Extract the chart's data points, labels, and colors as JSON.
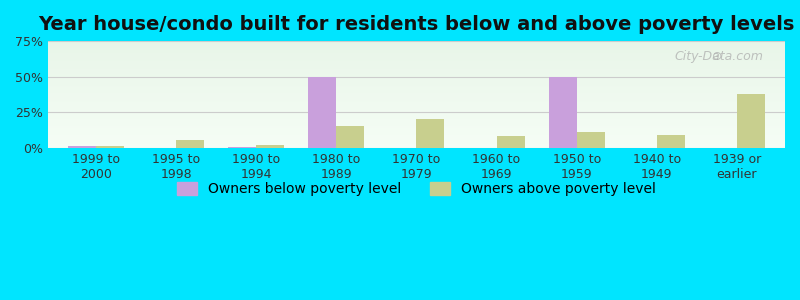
{
  "title": "Year house/condo built for residents below and above poverty levels",
  "categories": [
    "1999 to\n2000",
    "1995 to\n1998",
    "1990 to\n1994",
    "1980 to\n1989",
    "1970 to\n1979",
    "1960 to\n1969",
    "1950 to\n1959",
    "1940 to\n1949",
    "1939 or\nearlier"
  ],
  "below_poverty": [
    1.0,
    0.0,
    0.5,
    50.0,
    0.0,
    0.0,
    50.0,
    0.0,
    0.0
  ],
  "above_poverty": [
    1.5,
    5.5,
    2.0,
    15.0,
    20.0,
    8.0,
    11.0,
    9.0,
    38.0
  ],
  "below_color": "#c9a0dc",
  "above_color": "#c8cf8e",
  "background_color": "#00e5ff",
  "plot_bg_top": "#e8f5e9",
  "plot_bg_bottom": "#f0f9f0",
  "ylim": [
    0,
    75
  ],
  "yticks": [
    0,
    25,
    50,
    75
  ],
  "ytick_labels": [
    "0%",
    "25%",
    "50%",
    "75%"
  ],
  "title_fontsize": 14,
  "tick_fontsize": 9,
  "legend_fontsize": 10,
  "bar_width": 0.35,
  "watermark": "City-Data.com"
}
